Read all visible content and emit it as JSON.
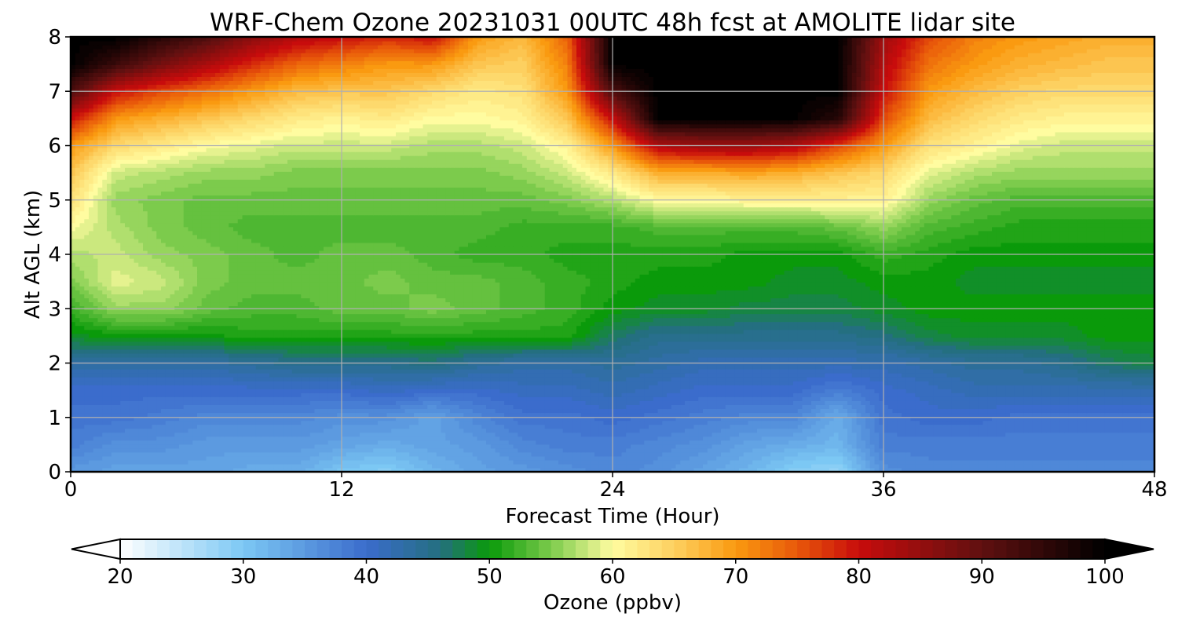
{
  "chart_data": {
    "type": "heatmap",
    "title": "WRF-Chem Ozone  20231031 00UTC 48h fcst at AMOLITE lidar site",
    "xlabel": "Forecast Time (Hour)",
    "ylabel": "Alt AGL (km)",
    "xlim": [
      0,
      48
    ],
    "ylim": [
      0,
      8
    ],
    "xticks": [
      0,
      12,
      24,
      36,
      48
    ],
    "yticks": [
      0,
      1,
      2,
      3,
      4,
      5,
      6,
      7,
      8
    ],
    "grid": true,
    "x": [
      0,
      2,
      4,
      6,
      8,
      10,
      12,
      14,
      16,
      18,
      20,
      22,
      24,
      26,
      28,
      30,
      32,
      34,
      36,
      38,
      40,
      42,
      44,
      46,
      48
    ],
    "y": [
      0,
      0.5,
      1,
      1.5,
      2,
      2.5,
      3,
      3.5,
      4,
      4.5,
      5,
      5.5,
      6,
      6.5,
      7,
      7.5,
      8
    ],
    "z": [
      [
        35,
        34,
        34,
        34,
        33,
        33,
        30,
        29,
        32,
        34,
        35,
        36,
        37,
        36,
        34,
        32,
        29,
        28,
        36,
        37,
        37,
        37,
        37,
        37,
        37
      ],
      [
        38,
        36,
        36,
        35,
        35,
        35,
        34,
        33,
        34,
        35,
        37,
        38,
        38,
        37,
        36,
        34,
        33,
        32,
        38,
        38,
        38,
        38,
        38,
        38,
        38
      ],
      [
        39,
        39,
        38,
        37,
        37,
        37,
        36,
        36,
        34,
        37,
        39,
        39,
        40,
        39,
        38,
        37,
        37,
        33,
        39,
        40,
        40,
        39,
        39,
        39,
        39
      ],
      [
        40,
        40,
        40,
        40,
        40,
        40,
        40,
        41,
        40,
        40,
        41,
        41,
        42,
        41,
        40,
        40,
        40,
        38,
        40,
        41,
        42,
        42,
        42,
        42,
        42
      ],
      [
        43,
        43,
        43,
        43,
        44,
        45,
        45,
        45,
        46,
        44,
        43,
        43,
        44,
        43,
        42,
        42,
        42,
        42,
        42,
        43,
        44,
        44,
        45,
        47,
        48
      ],
      [
        49,
        50,
        50,
        50,
        51,
        51,
        51,
        51,
        51,
        51,
        51,
        51,
        47,
        45,
        45,
        45,
        45,
        45,
        46,
        48,
        49,
        49,
        49,
        50,
        50
      ],
      [
        52,
        56,
        56,
        54,
        53,
        53,
        54,
        54,
        55,
        54,
        53,
        52,
        50,
        49,
        49,
        48,
        48,
        48,
        49,
        50,
        50,
        50,
        50,
        50,
        50
      ],
      [
        55,
        59,
        58,
        55,
        54,
        54,
        54,
        55,
        54,
        54,
        53,
        52,
        51,
        50,
        50,
        50,
        49,
        49,
        50,
        50,
        49,
        49,
        49,
        49,
        49
      ],
      [
        57,
        58,
        56,
        55,
        54,
        53,
        54,
        54,
        53,
        52,
        52,
        51,
        51,
        51,
        51,
        50,
        50,
        50,
        52,
        51,
        50,
        50,
        50,
        50,
        50
      ],
      [
        60,
        57,
        55,
        54,
        53,
        53,
        53,
        53,
        53,
        53,
        52,
        52,
        52,
        53,
        53,
        53,
        53,
        54,
        56,
        53,
        52,
        51,
        51,
        51,
        51
      ],
      [
        63,
        56,
        55,
        54,
        54,
        54,
        54,
        54,
        54,
        54,
        54,
        55,
        57,
        60,
        60,
        61,
        61,
        61,
        61,
        56,
        54,
        53,
        53,
        53,
        53
      ],
      [
        66,
        58,
        57,
        56,
        56,
        55,
        55,
        55,
        55,
        55,
        56,
        58,
        62,
        68,
        68,
        69,
        68,
        66,
        64,
        59,
        57,
        56,
        56,
        56,
        56
      ],
      [
        70,
        64,
        62,
        60,
        59,
        58,
        58,
        58,
        57,
        57,
        58,
        61,
        70,
        82,
        84,
        84,
        82,
        76,
        70,
        63,
        61,
        59,
        58,
        58,
        58
      ],
      [
        80,
        70,
        68,
        66,
        64,
        62,
        61,
        62,
        60,
        60,
        61,
        66,
        80,
        100,
        100,
        100,
        100,
        96,
        76,
        67,
        64,
        62,
        61,
        61,
        61
      ],
      [
        92,
        80,
        76,
        73,
        70,
        67,
        66,
        66,
        64,
        62,
        63,
        70,
        92,
        100,
        100,
        100,
        100,
        100,
        80,
        70,
        67,
        65,
        64,
        64,
        64
      ],
      [
        100,
        94,
        88,
        83,
        78,
        74,
        72,
        70,
        70,
        66,
        65,
        72,
        100,
        100,
        100,
        100,
        100,
        100,
        82,
        73,
        70,
        68,
        67,
        66,
        66
      ],
      [
        100,
        100,
        96,
        92,
        86,
        82,
        80,
        78,
        80,
        70,
        67,
        74,
        100,
        100,
        100,
        100,
        100,
        100,
        84,
        76,
        72,
        70,
        69,
        68,
        68
      ]
    ],
    "colorbar": {
      "label": "Ozone  (ppbv)",
      "min": 20,
      "max": 100,
      "extend": "both",
      "ticks": [
        20,
        30,
        40,
        50,
        60,
        70,
        80,
        90,
        100
      ],
      "stops": [
        {
          "value": 20,
          "color": "#ffffff"
        },
        {
          "value": 30,
          "color": "#7cc8f4"
        },
        {
          "value": 40,
          "color": "#3b6ccc"
        },
        {
          "value": 46,
          "color": "#246f80"
        },
        {
          "value": 50,
          "color": "#0a9a0a"
        },
        {
          "value": 55,
          "color": "#7ccb4c"
        },
        {
          "value": 60,
          "color": "#fffca0"
        },
        {
          "value": 65,
          "color": "#fdd060"
        },
        {
          "value": 70,
          "color": "#fa9a10"
        },
        {
          "value": 75,
          "color": "#e8580a"
        },
        {
          "value": 80,
          "color": "#c80c0c"
        },
        {
          "value": 90,
          "color": "#601010"
        },
        {
          "value": 100,
          "color": "#000000"
        }
      ]
    }
  }
}
